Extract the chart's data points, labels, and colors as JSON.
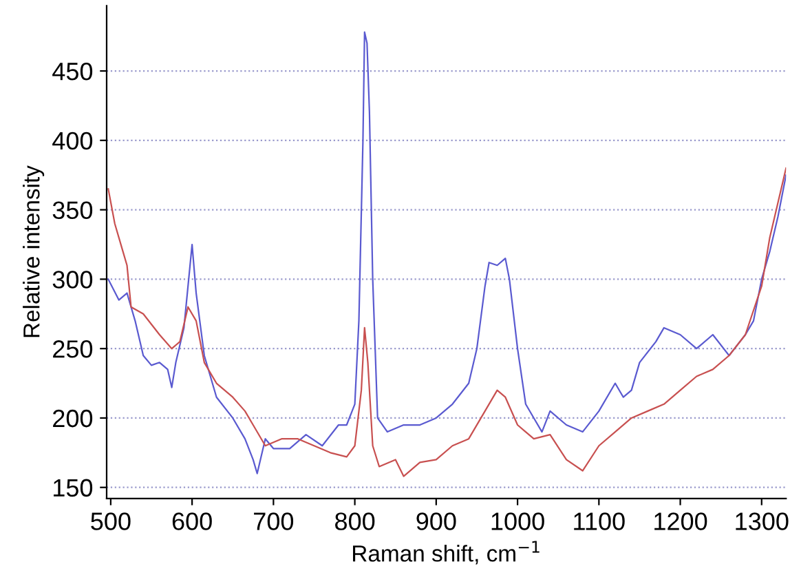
{
  "chart_data": {
    "type": "line",
    "xlabel": "Raman shift, cm$^{−1}$",
    "ylabel": "Relative intensity",
    "xlim": [
      495,
      1330
    ],
    "ylim": [
      142,
      497
    ],
    "xticks": [
      500,
      600,
      700,
      800,
      900,
      1000,
      1100,
      1200,
      1300
    ],
    "yticks": [
      150,
      200,
      250,
      300,
      350,
      400,
      450
    ],
    "grid": "y",
    "line_style": "solid",
    "series": [
      {
        "color": "#5a5ad0",
        "x": [
          497,
          510,
          520,
          530,
          540,
          550,
          560,
          570,
          575,
          580,
          590,
          600,
          605,
          615,
          630,
          650,
          665,
          675,
          680,
          690,
          700,
          720,
          740,
          760,
          780,
          790,
          800,
          805,
          810,
          812,
          815,
          818,
          822,
          828,
          840,
          860,
          880,
          900,
          920,
          940,
          950,
          960,
          965,
          975,
          985,
          990,
          1000,
          1010,
          1020,
          1030,
          1040,
          1060,
          1080,
          1100,
          1120,
          1130,
          1140,
          1150,
          1170,
          1180,
          1200,
          1220,
          1240,
          1260,
          1280,
          1290,
          1300,
          1310,
          1320,
          1330
        ],
        "values": [
          300,
          285,
          290,
          270,
          245,
          238,
          240,
          235,
          222,
          240,
          265,
          325,
          290,
          245,
          215,
          200,
          185,
          170,
          160,
          185,
          178,
          178,
          188,
          180,
          195,
          195,
          210,
          270,
          400,
          478,
          470,
          420,
          300,
          200,
          190,
          195,
          195,
          200,
          210,
          225,
          250,
          295,
          312,
          310,
          315,
          300,
          250,
          210,
          200,
          190,
          205,
          195,
          190,
          205,
          225,
          215,
          220,
          240,
          255,
          265,
          260,
          250,
          260,
          245,
          260,
          270,
          300,
          320,
          345,
          375
        ]
      },
      {
        "color": "#c85050",
        "x": [
          497,
          505,
          515,
          520,
          525,
          540,
          560,
          575,
          585,
          595,
          605,
          615,
          630,
          650,
          665,
          675,
          690,
          710,
          730,
          750,
          770,
          790,
          800,
          808,
          812,
          816,
          822,
          830,
          850,
          860,
          880,
          900,
          920,
          940,
          960,
          975,
          985,
          1000,
          1020,
          1040,
          1060,
          1080,
          1100,
          1120,
          1140,
          1160,
          1180,
          1200,
          1220,
          1240,
          1260,
          1280,
          1300,
          1310,
          1320,
          1330
        ],
        "values": [
          365,
          340,
          320,
          310,
          280,
          275,
          260,
          250,
          255,
          280,
          270,
          240,
          225,
          215,
          205,
          195,
          180,
          185,
          185,
          180,
          175,
          172,
          180,
          220,
          265,
          240,
          180,
          165,
          170,
          158,
          168,
          170,
          180,
          185,
          205,
          220,
          215,
          195,
          185,
          188,
          170,
          162,
          180,
          190,
          200,
          205,
          210,
          220,
          230,
          235,
          245,
          260,
          295,
          330,
          355,
          380
        ]
      }
    ]
  }
}
